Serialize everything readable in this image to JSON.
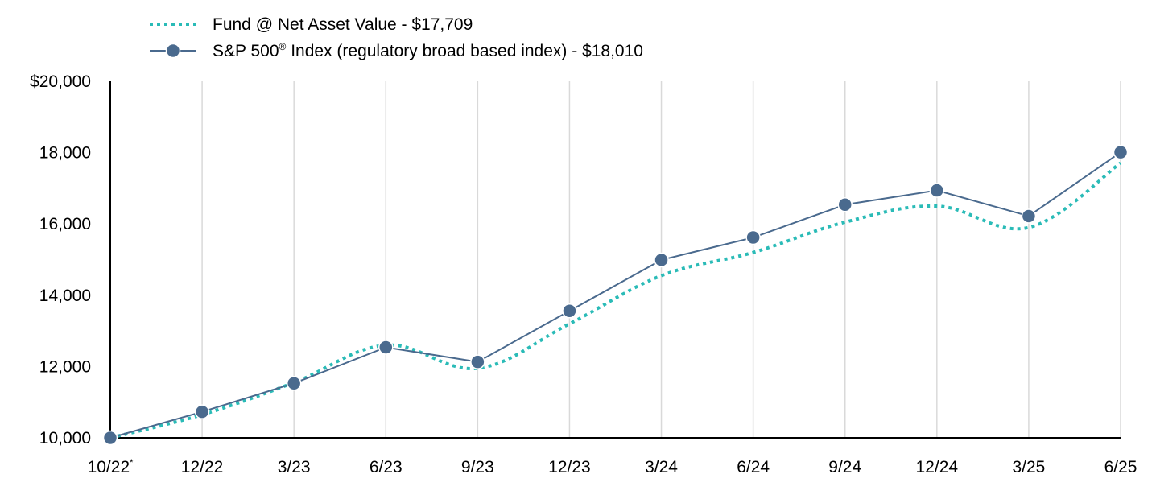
{
  "chart_data": {
    "type": "line",
    "categories": [
      "10/22",
      "12/22",
      "3/23",
      "6/23",
      "9/23",
      "12/23",
      "3/24",
      "6/24",
      "9/24",
      "12/24",
      "3/25",
      "6/25"
    ],
    "first_category_marker": "*",
    "series": [
      {
        "name": "Fund @ Net Asset Value - $17,709",
        "values": [
          10000,
          10650,
          11550,
          12600,
          11950,
          13200,
          14550,
          15200,
          16050,
          16500,
          15900,
          17709
        ],
        "color": "#2ABBB7",
        "style": "dotted",
        "markers": false
      },
      {
        "name_main": "S&P 500",
        "name_superscript": "®",
        "name_rest": " Index (regulatory broad based index) - $18,010",
        "values": [
          10000,
          10730,
          11530,
          12540,
          12130,
          13560,
          14990,
          15620,
          16540,
          16940,
          16220,
          18010
        ],
        "color": "#4A6A8E",
        "style": "solid",
        "markers": true
      }
    ],
    "ylim": [
      10000,
      20000
    ],
    "yticks": [
      10000,
      12000,
      14000,
      16000,
      18000,
      20000
    ],
    "ytick_labels": [
      "10,000",
      "12,000",
      "14,000",
      "16,000",
      "18,000",
      "$20,000"
    ],
    "grid": "vertical",
    "grid_color": "#D9D9D9",
    "legend_position": "top-left",
    "title": "",
    "xlabel": "",
    "ylabel": ""
  }
}
